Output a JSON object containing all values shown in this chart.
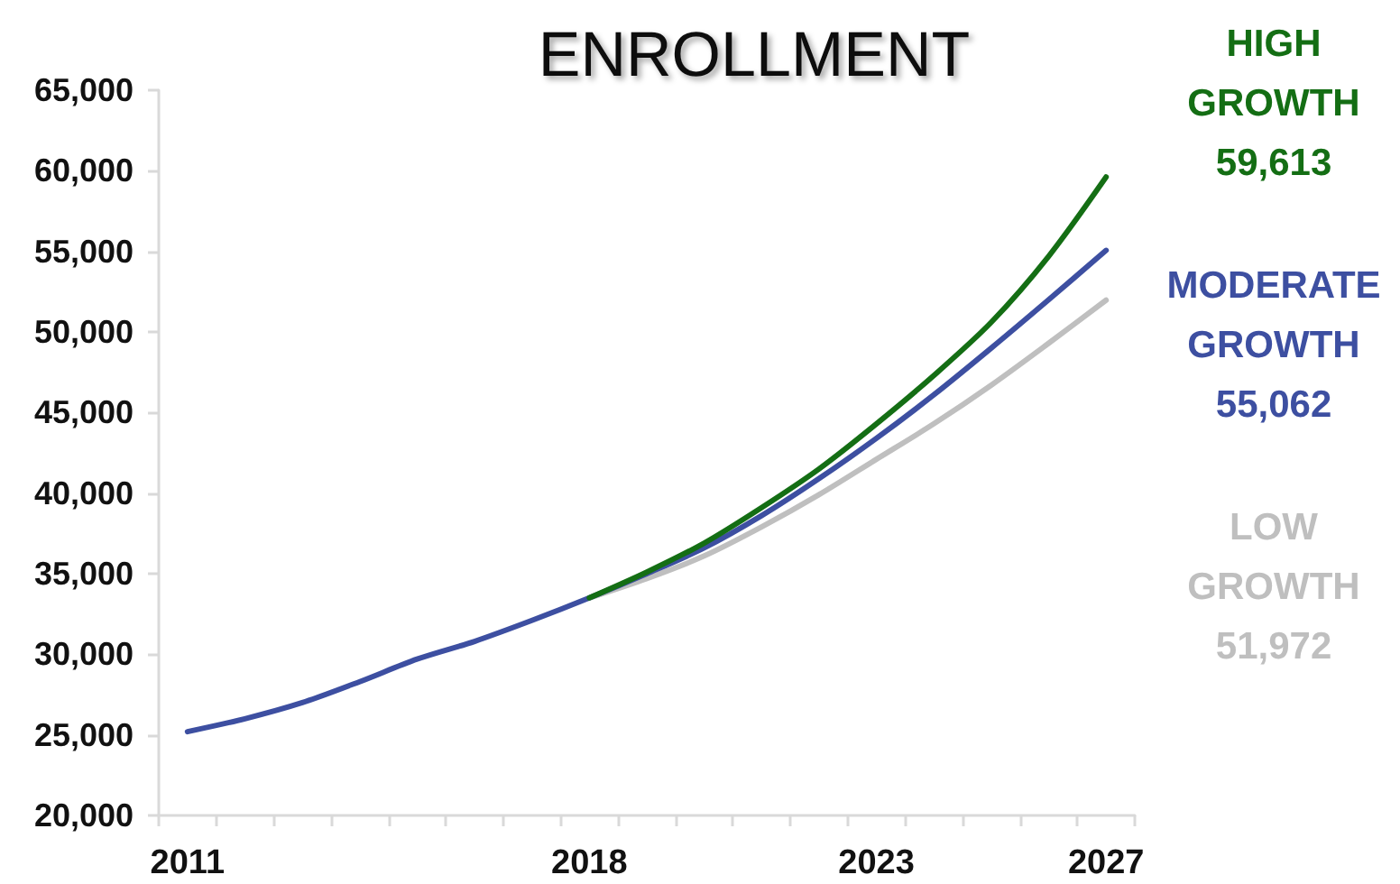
{
  "chart_data": {
    "type": "line",
    "title": "ENROLLMENT",
    "categories": [
      "2011",
      null,
      null,
      null,
      null,
      null,
      null,
      "2018",
      null,
      null,
      null,
      null,
      "2023",
      null,
      null,
      null,
      "2027"
    ],
    "series": [
      {
        "name": "HIGH GROWTH",
        "color": "#146e14",
        "values": [
          null,
          null,
          null,
          null,
          null,
          null,
          null,
          33500,
          35100,
          36900,
          39100,
          41500,
          44300,
          47300,
          50600,
          54700,
          59613
        ]
      },
      {
        "name": "MODERATE GROWTH",
        "color": "#3d4fa1",
        "values": [
          25200,
          26000,
          27000,
          28300,
          29700,
          30800,
          32100,
          33500,
          35000,
          36600,
          38600,
          40900,
          43400,
          46100,
          49000,
          52000,
          55062
        ]
      },
      {
        "name": "LOW GROWTH",
        "color": "#bfbfbf",
        "values": [
          null,
          null,
          null,
          null,
          null,
          null,
          null,
          33500,
          34700,
          36100,
          37900,
          39900,
          42100,
          44300,
          46700,
          49300,
          51972
        ]
      }
    ],
    "annotations": [
      "59,613",
      "55,062",
      "51,972"
    ],
    "ylim": [
      20000,
      65000
    ],
    "yticks": [
      {
        "value": 20000,
        "label": "20,000"
      },
      {
        "value": 25000,
        "label": "25,000"
      },
      {
        "value": 30000,
        "label": "30,000"
      },
      {
        "value": 35000,
        "label": "35,000"
      },
      {
        "value": 40000,
        "label": "40,000"
      },
      {
        "value": 45000,
        "label": "45,000"
      },
      {
        "value": 50000,
        "label": "50,000"
      },
      {
        "value": 55000,
        "label": "55,000"
      },
      {
        "value": 60000,
        "label": "60,000"
      },
      {
        "value": 65000,
        "label": "65,000"
      }
    ],
    "legend": "right"
  }
}
